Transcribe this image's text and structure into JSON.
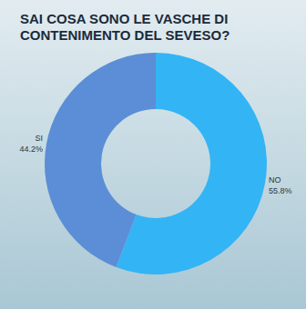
{
  "chart_data": {
    "type": "pie",
    "title": "SAI COSA SONO LE VASCHE DI CONTENIMENTO DEL SEVESO?",
    "categories": [
      "NO",
      "SI"
    ],
    "values": [
      55.8,
      44.2
    ],
    "value_labels": [
      "55.8%",
      "44.2%"
    ],
    "colors": [
      "#33b4f5",
      "#5b8ed6"
    ],
    "data_labels": true
  }
}
